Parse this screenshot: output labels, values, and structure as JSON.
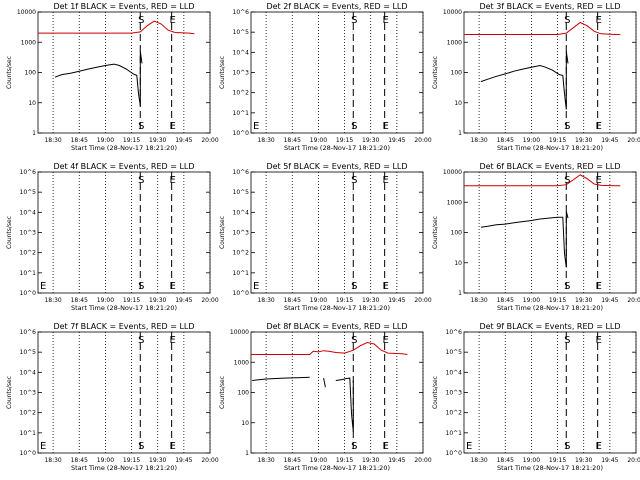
{
  "chart_data": [
    {
      "type": "line",
      "title": "Det 1f BLACK = Events, RED = LLD",
      "xlabel": "Start Time (28-Nov-17 18:21:20)",
      "ylabel": "Counts/sec",
      "xlim": [
        "18:21:20",
        "20:00"
      ],
      "ylim": [
        1,
        10000
      ],
      "log_y": true,
      "x_ticks": [
        "18:30",
        "18:45",
        "19:00",
        "19:15",
        "19:30",
        "19:45",
        "20:00"
      ],
      "y_ticks": [
        "1",
        "10",
        "100",
        "1000",
        "10000"
      ],
      "markers": [
        {
          "label": "S",
          "time": "19:20",
          "style": "dashed"
        },
        {
          "label": "E",
          "time": "19:38",
          "style": "dashed"
        }
      ],
      "series": [
        {
          "name": "Events",
          "color": "#000000",
          "x": [
            "18:31",
            "18:35",
            "18:40",
            "18:45",
            "18:50",
            "18:55",
            "19:00",
            "19:05",
            "19:08",
            "19:12",
            "19:16",
            "19:18",
            "19:19",
            "19:20",
            "19:20",
            "19:21"
          ],
          "y": [
            70,
            85,
            95,
            110,
            130,
            150,
            170,
            190,
            170,
            130,
            90,
            80,
            20,
            8,
            500,
            200
          ]
        },
        {
          "name": "LLD",
          "color": "#cc0000",
          "x": [
            "18:21:20",
            "18:40",
            "19:00",
            "19:15",
            "19:20",
            "19:24",
            "19:28",
            "19:32",
            "19:36",
            "19:40",
            "19:48",
            "19:51"
          ],
          "y": [
            2000,
            2000,
            2000,
            2000,
            2200,
            3500,
            5000,
            4000,
            2500,
            2100,
            2000,
            1900
          ]
        }
      ]
    },
    {
      "type": "line",
      "title": "Det 2f BLACK = Events, RED = LLD",
      "xlabel": "Start Time (28-Nov-17 18:21:20)",
      "ylabel": "Counts/sec",
      "xlim": [
        "18:21:20",
        "20:00"
      ],
      "ylim": [
        1,
        1000000
      ],
      "log_y": true,
      "x_ticks": [
        "18:30",
        "18:45",
        "19:00",
        "19:15",
        "19:30",
        "19:45",
        "20:00"
      ],
      "y_ticks": [
        "10^0",
        "10^1",
        "10^2",
        "10^3",
        "10^4",
        "10^5",
        "10^6"
      ],
      "markers": [
        {
          "label": "S",
          "time": "19:20",
          "style": "dashed"
        },
        {
          "label": "E",
          "time": "19:38",
          "style": "dashed"
        }
      ],
      "series": []
    },
    {
      "type": "line",
      "title": "Det 3f BLACK = Events, RED = LLD",
      "xlabel": "Start Time (28-Nov-17 18:21:20)",
      "ylabel": "Counts/sec",
      "xlim": [
        "18:21:20",
        "20:00"
      ],
      "ylim": [
        1,
        10000
      ],
      "log_y": true,
      "x_ticks": [
        "18:30",
        "18:45",
        "19:00",
        "19:15",
        "19:30",
        "19:45",
        "20:00"
      ],
      "y_ticks": [
        "1",
        "10",
        "100",
        "1000",
        "10000"
      ],
      "markers": [
        {
          "label": "S",
          "time": "19:20",
          "style": "dashed"
        },
        {
          "label": "E",
          "time": "19:38",
          "style": "dashed"
        }
      ],
      "series": [
        {
          "name": "Events",
          "color": "#000000",
          "x": [
            "18:31",
            "18:35",
            "18:40",
            "18:45",
            "18:50",
            "18:55",
            "19:00",
            "19:05",
            "19:08",
            "19:12",
            "19:16",
            "19:18",
            "19:19",
            "19:20",
            "19:20",
            "19:21"
          ],
          "y": [
            50,
            60,
            75,
            90,
            110,
            130,
            150,
            170,
            150,
            120,
            85,
            80,
            20,
            6,
            500,
            200
          ]
        },
        {
          "name": "LLD",
          "color": "#cc0000",
          "x": [
            "18:21:20",
            "18:40",
            "19:00",
            "19:15",
            "19:20",
            "19:24",
            "19:28",
            "19:32",
            "19:36",
            "19:40",
            "19:48",
            "19:51"
          ],
          "y": [
            1800,
            1800,
            1800,
            1800,
            2000,
            3000,
            4500,
            3500,
            2300,
            1900,
            1800,
            1800
          ]
        }
      ]
    },
    {
      "type": "line",
      "title": "Det 4f BLACK = Events, RED = LLD",
      "xlabel": "Start Time (28-Nov-17 18:21:20)",
      "ylabel": "Counts/sec",
      "xlim": [
        "18:21:20",
        "20:00"
      ],
      "ylim": [
        1,
        1000000
      ],
      "log_y": true,
      "x_ticks": [
        "18:30",
        "18:45",
        "19:00",
        "19:15",
        "19:30",
        "19:45",
        "20:00"
      ],
      "y_ticks": [
        "10^0",
        "10^1",
        "10^2",
        "10^3",
        "10^4",
        "10^5",
        "10^6"
      ],
      "markers": [
        {
          "label": "S",
          "time": "19:20",
          "style": "dashed"
        },
        {
          "label": "E",
          "time": "19:38",
          "style": "dashed"
        }
      ],
      "series": []
    },
    {
      "type": "line",
      "title": "Det 5f BLACK = Events, RED = LLD",
      "xlabel": "Start Time (28-Nov-17 18:21:20)",
      "ylabel": "Counts/sec",
      "xlim": [
        "18:21:20",
        "20:00"
      ],
      "ylim": [
        1,
        1000000
      ],
      "log_y": true,
      "x_ticks": [
        "18:30",
        "18:45",
        "19:00",
        "19:15",
        "19:30",
        "19:45",
        "20:00"
      ],
      "y_ticks": [
        "10^0",
        "10^1",
        "10^2",
        "10^3",
        "10^4",
        "10^5",
        "10^6"
      ],
      "markers": [
        {
          "label": "S",
          "time": "19:20",
          "style": "dashed"
        },
        {
          "label": "E",
          "time": "19:38",
          "style": "dashed"
        }
      ],
      "series": []
    },
    {
      "type": "line",
      "title": "Det 6f BLACK = Events, RED = LLD",
      "xlabel": "Start Time (28-Nov-17 18:21:20)",
      "ylabel": "Counts/sec",
      "xlim": [
        "18:21:20",
        "20:00"
      ],
      "ylim": [
        1,
        10000
      ],
      "log_y": true,
      "x_ticks": [
        "18:30",
        "18:45",
        "19:00",
        "19:15",
        "19:30",
        "19:45",
        "20:00"
      ],
      "y_ticks": [
        "1",
        "10",
        "100",
        "1000",
        "10000"
      ],
      "markers": [
        {
          "label": "S",
          "time": "19:20",
          "style": "dashed"
        },
        {
          "label": "E",
          "time": "19:38",
          "style": "dashed"
        }
      ],
      "series": [
        {
          "name": "Events",
          "color": "#000000",
          "x": [
            "18:31",
            "18:35",
            "18:40",
            "18:45",
            "18:50",
            "18:55",
            "19:00",
            "19:05",
            "19:10",
            "19:15",
            "19:18",
            "19:19",
            "19:20",
            "19:20",
            "19:21"
          ],
          "y": [
            150,
            160,
            180,
            190,
            210,
            230,
            250,
            280,
            300,
            320,
            320,
            20,
            7,
            500,
            300
          ]
        },
        {
          "name": "LLD",
          "color": "#cc0000",
          "x": [
            "18:21:20",
            "18:40",
            "19:00",
            "19:15",
            "19:20",
            "19:24",
            "19:28",
            "19:32",
            "19:36",
            "19:40",
            "19:48",
            "19:51"
          ],
          "y": [
            3500,
            3500,
            3500,
            3500,
            3800,
            5500,
            8000,
            6000,
            4000,
            3600,
            3500,
            3500
          ]
        }
      ]
    },
    {
      "type": "line",
      "title": "Det 7f BLACK = Events, RED = LLD",
      "xlabel": "Start Time (28-Nov-17 18:21:20)",
      "ylabel": "Counts/sec",
      "xlim": [
        "18:21:20",
        "20:00"
      ],
      "ylim": [
        1,
        1000000
      ],
      "log_y": true,
      "x_ticks": [
        "18:30",
        "18:45",
        "19:00",
        "19:15",
        "19:30",
        "19:45",
        "20:00"
      ],
      "y_ticks": [
        "10^0",
        "10^1",
        "10^2",
        "10^3",
        "10^4",
        "10^5",
        "10^6"
      ],
      "markers": [
        {
          "label": "S",
          "time": "19:20",
          "style": "dashed"
        },
        {
          "label": "E",
          "time": "19:38",
          "style": "dashed"
        }
      ],
      "series": []
    },
    {
      "type": "line",
      "title": "Det 8f BLACK = Events, RED = LLD",
      "xlabel": "Start Time (28-Nov-17 18:21:20)",
      "ylabel": "Counts/sec",
      "xlim": [
        "18:21:20",
        "20:00"
      ],
      "ylim": [
        1,
        10000
      ],
      "log_y": true,
      "x_ticks": [
        "18:30",
        "18:45",
        "19:00",
        "19:15",
        "19:30",
        "19:45",
        "20:00"
      ],
      "y_ticks": [
        "1",
        "10",
        "100",
        "1000",
        "10000"
      ],
      "markers": [
        {
          "label": "S",
          "time": "19:20",
          "style": "dashed"
        },
        {
          "label": "E",
          "time": "19:38",
          "style": "dashed"
        }
      ],
      "series": [
        {
          "name": "Events",
          "color": "#000000",
          "x": [
            "18:22",
            "18:30",
            "18:40",
            "18:50",
            "18:55",
            "18:56",
            "18:57",
            "19:03",
            "19:04",
            "19:06",
            "19:08",
            "19:10",
            "19:14",
            "19:16",
            "19:18",
            "19:19",
            "19:20",
            "19:20"
          ],
          "y": [
            250,
            280,
            300,
            310,
            320,
            null,
            null,
            300,
            150,
            null,
            null,
            250,
            270,
            290,
            300,
            20,
            5,
            250
          ]
        },
        {
          "name": "LLD",
          "color": "#cc0000",
          "x": [
            "18:21:20",
            "18:40",
            "18:55",
            "18:57",
            "19:00",
            "19:03",
            "19:06",
            "19:10",
            "19:15",
            "19:20",
            "19:24",
            "19:28",
            "19:32",
            "19:36",
            "19:40",
            "19:48",
            "19:51"
          ],
          "y": [
            1800,
            1800,
            1800,
            2300,
            2200,
            2400,
            2300,
            2100,
            2000,
            2500,
            3500,
            4500,
            4000,
            2500,
            2000,
            1900,
            1800
          ]
        }
      ]
    },
    {
      "type": "line",
      "title": "Det 9f BLACK = Events, RED = LLD",
      "xlabel": "Start Time (28-Nov-17 18:21:20)",
      "ylabel": "Counts/sec",
      "xlim": [
        "18:21:20",
        "20:00"
      ],
      "ylim": [
        1,
        1000000
      ],
      "log_y": true,
      "x_ticks": [
        "18:30",
        "18:45",
        "19:00",
        "19:15",
        "19:30",
        "19:45",
        "20:00"
      ],
      "y_ticks": [
        "10^0",
        "10^1",
        "10^2",
        "10^3",
        "10^4",
        "10^5",
        "10^6"
      ],
      "markers": [
        {
          "label": "S",
          "time": "19:20",
          "style": "dashed"
        },
        {
          "label": "E",
          "time": "19:38",
          "style": "dashed"
        }
      ],
      "series": []
    }
  ]
}
